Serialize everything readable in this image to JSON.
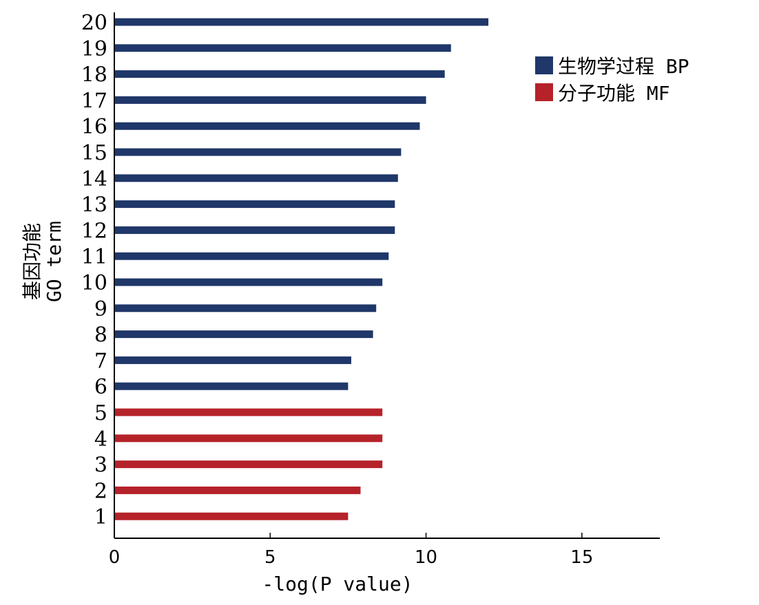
{
  "chart_data": {
    "type": "bar",
    "orientation": "horizontal",
    "categories": [
      "1",
      "2",
      "3",
      "4",
      "5",
      "6",
      "7",
      "8",
      "9",
      "10",
      "11",
      "12",
      "13",
      "14",
      "15",
      "16",
      "17",
      "18",
      "19",
      "20"
    ],
    "values": [
      7.5,
      7.9,
      8.6,
      8.6,
      8.6,
      7.5,
      7.6,
      8.3,
      8.4,
      8.6,
      8.8,
      9.0,
      9.0,
      9.1,
      9.2,
      9.8,
      10.0,
      10.6,
      10.8,
      12.0
    ],
    "groups": [
      "MF",
      "MF",
      "MF",
      "MF",
      "MF",
      "BP",
      "BP",
      "BP",
      "BP",
      "BP",
      "BP",
      "BP",
      "BP",
      "BP",
      "BP",
      "BP",
      "BP",
      "BP",
      "BP",
      "BP"
    ],
    "xlabel": "-log(P value)",
    "ylabel_line1": "基因功能",
    "ylabel_line2": "GO term",
    "xlim": [
      0,
      17.5
    ],
    "xticks": [
      0,
      5,
      10,
      15
    ],
    "grid": false,
    "legend_position": "top-right",
    "legend": [
      {
        "key": "BP",
        "label": "生物学过程 BP",
        "color": "#1f3769"
      },
      {
        "key": "MF",
        "label": "分子功能 MF",
        "color": "#b5222a"
      }
    ]
  }
}
